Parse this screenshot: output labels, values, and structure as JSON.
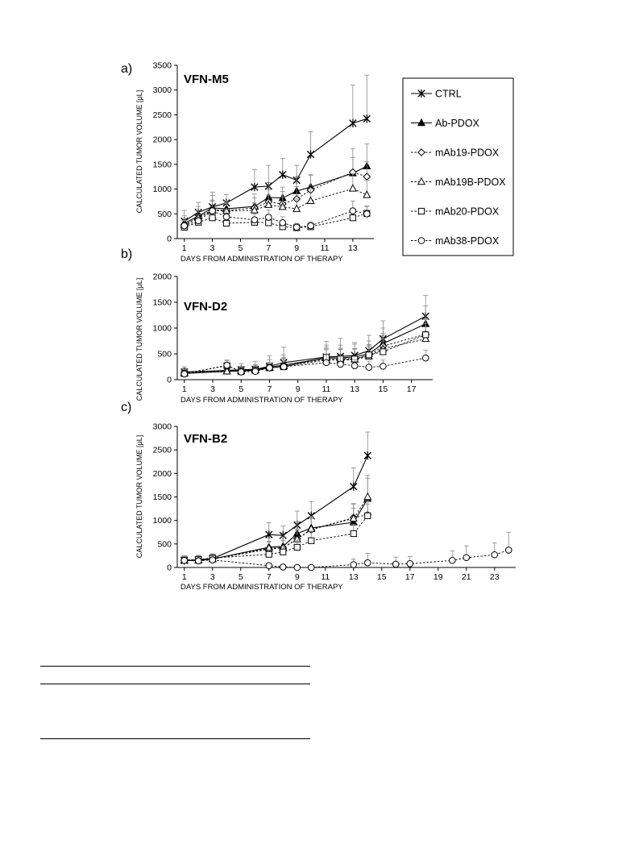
{
  "figure": {
    "legend_entries": [
      "CTRL",
      "Ab-PDOX",
      "mAb19-PDOX",
      "mAb19B-PDOX",
      "mAb20-PDOX",
      "mAb38-PDOX"
    ]
  },
  "chart_data": [
    {
      "type": "line",
      "panel_letter": "a)",
      "title": "VFN-M5",
      "xlabel": "DAYS FROM ADMINISTRATION OF THERAPY",
      "ylabel": "CALCULATED TUMOR VOLUME [μL]",
      "xlim": [
        0.5,
        14.5
      ],
      "ylim": [
        0,
        3500
      ],
      "xticks": [
        1,
        3,
        5,
        7,
        9,
        11,
        13
      ],
      "yticks": [
        0,
        500,
        1000,
        1500,
        2000,
        2500,
        3000,
        3500
      ],
      "grid": false,
      "legend_position": "right",
      "x": [
        1,
        2,
        3,
        4,
        6,
        7,
        8,
        9,
        10,
        13,
        14
      ],
      "series": [
        {
          "name": "CTRL",
          "marker": "asterisk",
          "dashed": false,
          "values": [
            350,
            530,
            640,
            720,
            1040,
            1060,
            1290,
            1180,
            1700,
            2330,
            2420
          ],
          "errors": [
            220,
            200,
            300,
            170,
            350,
            420,
            330,
            300,
            460,
            770,
            880
          ]
        },
        {
          "name": "Ab-PDOX",
          "marker": "triangle-filled",
          "dashed": false,
          "values": [
            310,
            450,
            620,
            600,
            650,
            830,
            820,
            960,
            1040,
            1320,
            1460
          ],
          "errors": [
            150,
            200,
            250,
            150,
            250,
            300,
            220,
            280,
            250,
            500,
            450
          ]
        },
        {
          "name": "mAb19-PDOX",
          "marker": "diamond-open",
          "dashed": true,
          "values": [
            280,
            420,
            580,
            570,
            620,
            740,
            700,
            800,
            980,
            1340,
            1250
          ],
          "errors": [
            120,
            150,
            200,
            150,
            200,
            250,
            250,
            250,
            300,
            300,
            300
          ]
        },
        {
          "name": "mAb19B-PDOX",
          "marker": "triangle-open",
          "dashed": true,
          "values": [
            270,
            420,
            560,
            560,
            570,
            680,
            640,
            600,
            760,
            1010,
            880
          ],
          "errors": [
            100,
            150,
            200,
            150,
            150,
            200,
            200,
            200,
            250,
            300,
            300
          ]
        },
        {
          "name": "mAb20-PDOX",
          "marker": "square-open",
          "dashed": true,
          "values": [
            230,
            330,
            420,
            310,
            330,
            320,
            240,
            220,
            240,
            420,
            510
          ],
          "errors": [
            80,
            100,
            120,
            80,
            100,
            120,
            80,
            80,
            80,
            150,
            150
          ]
        },
        {
          "name": "mAb38-PDOX",
          "marker": "circle-open",
          "dashed": true,
          "values": [
            260,
            360,
            560,
            440,
            380,
            430,
            320,
            230,
            260,
            560,
            500
          ],
          "errors": [
            100,
            120,
            200,
            150,
            120,
            150,
            120,
            80,
            80,
            200,
            150
          ]
        }
      ]
    },
    {
      "type": "line",
      "panel_letter": "b)",
      "title": "VFN-D2",
      "xlabel": "DAYS FROM ADMINISTRATION OF THERAPY",
      "ylabel": "CALCULATED TUMOR VOLUME [μL]",
      "xlim": [
        0.5,
        18.5
      ],
      "ylim": [
        0,
        2000
      ],
      "xticks": [
        1,
        3,
        5,
        7,
        9,
        11,
        13,
        15,
        17
      ],
      "yticks": [
        0,
        500,
        1000,
        1500,
        2000
      ],
      "grid": false,
      "x": [
        1,
        4,
        5,
        6,
        7,
        8,
        11,
        12,
        13,
        14,
        15,
        18
      ],
      "series": [
        {
          "name": "CTRL",
          "marker": "asterisk",
          "dashed": false,
          "values": [
            150,
            180,
            190,
            200,
            260,
            330,
            440,
            450,
            470,
            560,
            790,
            1230
          ],
          "errors": [
            100,
            100,
            120,
            150,
            200,
            300,
            300,
            350,
            250,
            300,
            350,
            400
          ]
        },
        {
          "name": "Ab-PDOX",
          "marker": "triangle-filled",
          "dashed": false,
          "values": [
            120,
            160,
            170,
            190,
            240,
            280,
            420,
            420,
            440,
            500,
            700,
            1080
          ],
          "errors": [
            80,
            80,
            80,
            100,
            150,
            200,
            250,
            250,
            250,
            250,
            300,
            350
          ]
        },
        {
          "name": "mAb19-PDOX",
          "marker": "diamond-open",
          "dashed": true,
          "values": [
            130,
            170,
            180,
            190,
            230,
            280,
            400,
            390,
            400,
            470,
            650,
            880
          ],
          "errors": [
            80,
            80,
            80,
            80,
            100,
            150,
            200,
            200,
            200,
            200,
            250,
            300
          ]
        },
        {
          "name": "mAb19B-PDOX",
          "marker": "triangle-open",
          "dashed": true,
          "values": [
            140,
            160,
            170,
            180,
            230,
            260,
            380,
            380,
            390,
            450,
            600,
            790
          ],
          "errors": [
            80,
            80,
            80,
            80,
            100,
            150,
            200,
            200,
            200,
            200,
            250,
            300
          ]
        },
        {
          "name": "mAb20-PDOX",
          "marker": "square-open",
          "dashed": true,
          "values": [
            120,
            270,
            160,
            180,
            230,
            250,
            430,
            410,
            400,
            480,
            540,
            870
          ],
          "errors": [
            80,
            100,
            80,
            80,
            100,
            150,
            200,
            200,
            200,
            200,
            250,
            300
          ]
        },
        {
          "name": "mAb38-PDOX",
          "marker": "circle-open",
          "dashed": true,
          "values": [
            110,
            280,
            150,
            160,
            230,
            250,
            330,
            300,
            270,
            240,
            260,
            420
          ],
          "errors": [
            60,
            100,
            60,
            60,
            80,
            100,
            150,
            150,
            120,
            120,
            120,
            150
          ]
        }
      ]
    },
    {
      "type": "line",
      "panel_letter": "c)",
      "title": "VFN-B2",
      "xlabel": "DAYS FROM ADMINISTRATION OF THERAPY",
      "ylabel": "CALCULATED TUMOR VOLUME [μL]",
      "xlim": [
        0.5,
        24.5
      ],
      "ylim": [
        0,
        3000
      ],
      "xticks": [
        1,
        3,
        5,
        7,
        9,
        11,
        13,
        15,
        17,
        19,
        21,
        23
      ],
      "yticks": [
        0,
        500,
        1000,
        1500,
        2000,
        2500,
        3000
      ],
      "grid": false,
      "series": [
        {
          "name": "CTRL",
          "marker": "asterisk",
          "dashed": false,
          "x": [
            1,
            2,
            3,
            7,
            8,
            9,
            10,
            13,
            14
          ],
          "values": [
            150,
            160,
            190,
            700,
            680,
            900,
            1100,
            1720,
            2380
          ],
          "errors": [
            100,
            100,
            100,
            250,
            200,
            300,
            300,
            400,
            500
          ]
        },
        {
          "name": "Ab-PDOX",
          "marker": "triangle-filled",
          "dashed": false,
          "x": [
            1,
            2,
            3,
            7,
            8,
            9,
            10,
            13,
            14
          ],
          "values": [
            150,
            150,
            180,
            430,
            450,
            720,
            840,
            960,
            1460
          ],
          "errors": [
            80,
            80,
            80,
            200,
            200,
            250,
            250,
            300,
            500
          ]
        },
        {
          "name": "mAb19-PDOX",
          "marker": "diamond-open",
          "dashed": true,
          "x": [
            1,
            2,
            3,
            7,
            8,
            9,
            10,
            13,
            14
          ],
          "values": [
            150,
            150,
            180,
            390,
            420,
            610,
            800,
            1060,
            1120
          ],
          "errors": [
            80,
            80,
            80,
            150,
            150,
            200,
            250,
            300,
            300
          ]
        },
        {
          "name": "mAb19B-PDOX",
          "marker": "triangle-open",
          "dashed": true,
          "x": [
            1,
            2,
            3,
            7,
            8,
            9,
            10,
            13,
            14
          ],
          "values": [
            150,
            150,
            180,
            410,
            420,
            600,
            820,
            1040,
            1500
          ],
          "errors": [
            80,
            80,
            80,
            150,
            150,
            200,
            250,
            300,
            400
          ]
        },
        {
          "name": "mAb20-PDOX",
          "marker": "square-open",
          "dashed": true,
          "x": [
            1,
            2,
            3,
            7,
            8,
            9,
            10,
            13,
            14
          ],
          "values": [
            160,
            170,
            200,
            280,
            330,
            430,
            570,
            720,
            1100
          ],
          "errors": [
            80,
            80,
            80,
            100,
            120,
            150,
            200,
            200,
            250
          ]
        },
        {
          "name": "mAb38-PDOX",
          "marker": "circle-open",
          "dashed": true,
          "x": [
            1,
            2,
            3,
            7,
            8,
            9,
            10,
            13,
            14,
            16,
            17,
            20,
            21,
            23,
            24
          ],
          "values": [
            150,
            140,
            160,
            40,
            10,
            0,
            0,
            60,
            100,
            70,
            80,
            150,
            210,
            270,
            370
          ],
          "errors": [
            80,
            80,
            80,
            40,
            20,
            10,
            10,
            120,
            200,
            150,
            150,
            200,
            250,
            250,
            380
          ]
        }
      ]
    }
  ]
}
